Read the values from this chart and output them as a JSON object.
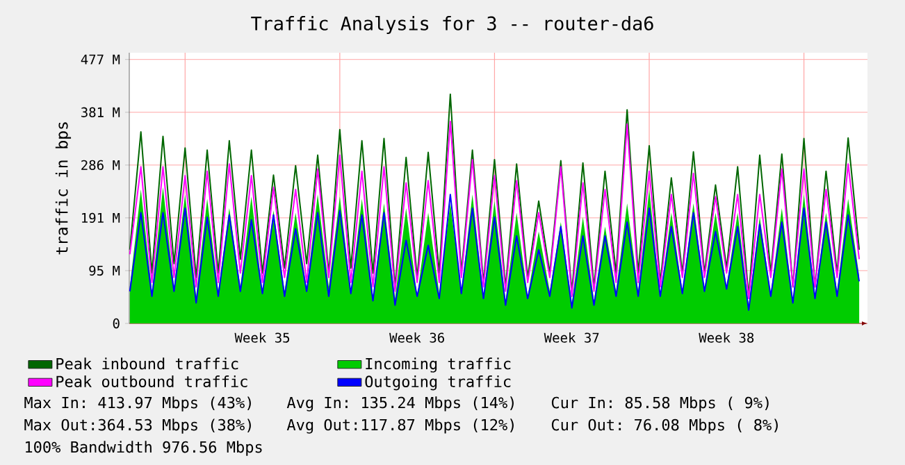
{
  "chart_data": {
    "type": "line",
    "title": "Traffic Analysis for 3 -- router-da6",
    "ylabel": "traffic in bps",
    "categories": [
      null,
      null,
      null,
      null,
      null,
      null,
      null,
      null,
      null,
      null,
      null,
      null,
      "Week 35",
      null,
      null,
      null,
      null,
      null,
      null,
      null,
      null,
      null,
      null,
      null,
      null,
      null,
      "Week 36",
      null,
      null,
      null,
      null,
      null,
      null,
      null,
      null,
      null,
      null,
      null,
      null,
      null,
      "Week 37",
      null,
      null,
      null,
      null,
      null,
      null,
      null,
      null,
      null,
      null,
      null,
      null,
      null,
      "Week 38",
      null,
      null,
      null,
      null,
      null,
      null,
      null,
      null,
      null,
      null,
      null,
      null
    ],
    "series": [
      {
        "name": "Peak inbound traffic",
        "color": "#006600",
        "values": [
          133,
          346,
          91,
          338,
          108,
          317,
          83,
          313,
          91,
          330,
          116,
          313,
          91,
          268,
          100,
          285,
          108,
          304,
          91,
          350,
          100,
          330,
          91,
          334,
          66,
          300,
          83,
          309,
          91,
          414,
          91,
          313,
          74,
          296,
          66,
          288,
          83,
          221,
          91,
          294,
          58,
          290,
          66,
          275,
          91,
          386,
          91,
          321,
          74,
          263,
          91,
          310,
          91,
          250,
          100,
          283,
          49,
          304,
          91,
          306,
          66,
          334,
          66,
          275,
          91,
          335,
          133
        ]
      },
      {
        "name": "Incoming traffic",
        "type": "area",
        "color": "#00cc00",
        "values": [
          66,
          242,
          58,
          246,
          66,
          233,
          49,
          225,
          58,
          208,
          66,
          229,
          54,
          204,
          58,
          200,
          62,
          233,
          66,
          229,
          58,
          225,
          49,
          217,
          45,
          208,
          49,
          200,
          54,
          217,
          58,
          233,
          49,
          221,
          41,
          200,
          49,
          166,
          58,
          183,
          37,
          192,
          41,
          175,
          58,
          217,
          58,
          242,
          49,
          200,
          58,
          217,
          62,
          200,
          66,
          200,
          33,
          192,
          54,
          208,
          41,
          233,
          49,
          200,
          58,
          225,
          86
        ]
      },
      {
        "name": "Peak outbound traffic",
        "color": "#ff00ff",
        "values": [
          125,
          283,
          74,
          283,
          83,
          267,
          66,
          275,
          74,
          288,
          91,
          267,
          74,
          246,
          83,
          242,
          74,
          279,
          83,
          304,
          74,
          275,
          66,
          283,
          58,
          254,
          74,
          258,
          74,
          365,
          83,
          296,
          66,
          267,
          58,
          258,
          74,
          200,
          83,
          283,
          49,
          254,
          58,
          242,
          74,
          360,
          74,
          275,
          66,
          233,
          83,
          271,
          83,
          229,
          91,
          233,
          45,
          233,
          83,
          279,
          66,
          279,
          66,
          242,
          83,
          288,
          116
        ]
      },
      {
        "name": "Outgoing traffic",
        "color": "#0000ff",
        "values": [
          58,
          200,
          49,
          200,
          58,
          208,
          37,
          192,
          49,
          196,
          58,
          187,
          54,
          196,
          49,
          171,
          58,
          200,
          49,
          204,
          54,
          196,
          41,
          200,
          33,
          150,
          49,
          141,
          45,
          233,
          54,
          208,
          45,
          192,
          33,
          158,
          45,
          133,
          49,
          175,
          28,
          158,
          33,
          158,
          49,
          183,
          49,
          208,
          49,
          175,
          54,
          200,
          58,
          166,
          62,
          175,
          24,
          179,
          49,
          183,
          37,
          208,
          45,
          183,
          49,
          196,
          76
        ]
      }
    ],
    "ylim": [
      0,
      489
    ],
    "yticks": [
      0,
      {
        "value": 95.37,
        "label": "95 M"
      },
      {
        "value": 190.73,
        "label": "191 M"
      },
      {
        "value": 286.1,
        "label": "286 M"
      },
      {
        "value": 381.47,
        "label": "381 M"
      },
      {
        "value": 476.84,
        "label": "477 M"
      }
    ],
    "grid": "y",
    "legend": "bottom",
    "annotations": [
      "Max In: 413.97 Mbps (43%)",
      "Avg In: 135.24 Mbps (14%)",
      "Cur In: 85.58 Mbps ( 9%)",
      "Max Out:364.53 Mbps (38%)",
      "Avg Out:117.87 Mbps (12%)",
      "Cur Out: 76.08 Mbps ( 8%)",
      "100% Bandwidth 976.56 Mbps"
    ]
  }
}
